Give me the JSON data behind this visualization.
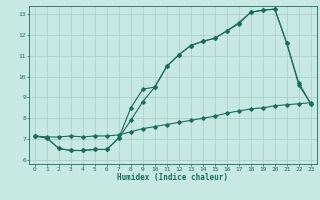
{
  "title": "",
  "xlabel": "Humidex (Indice chaleur)",
  "ylabel": "",
  "xlim": [
    -0.5,
    23.5
  ],
  "ylim": [
    5.8,
    13.4
  ],
  "yticks": [
    6,
    7,
    8,
    9,
    10,
    11,
    12,
    13
  ],
  "xticks": [
    0,
    1,
    2,
    3,
    4,
    5,
    6,
    7,
    8,
    9,
    10,
    11,
    12,
    13,
    14,
    15,
    16,
    17,
    18,
    19,
    20,
    21,
    22,
    23
  ],
  "bg_color": "#c8e8e4",
  "grid_color": "#a8ccc8",
  "line_color": "#1a6b60",
  "line1_x": [
    0,
    1,
    2,
    3,
    4,
    5,
    6,
    7,
    8,
    9,
    10,
    11,
    12,
    13,
    14,
    15,
    16,
    17,
    18,
    19,
    20,
    21,
    22,
    23
  ],
  "line1_y": [
    7.15,
    7.05,
    6.55,
    6.45,
    6.45,
    6.5,
    6.5,
    7.05,
    7.9,
    8.8,
    9.5,
    10.5,
    11.05,
    11.5,
    11.7,
    11.85,
    12.2,
    12.55,
    13.1,
    13.2,
    13.25,
    11.6,
    9.6,
    8.7
  ],
  "line2_x": [
    0,
    1,
    2,
    3,
    4,
    5,
    6,
    7,
    8,
    9,
    10,
    11,
    12,
    13,
    14,
    15,
    16,
    17,
    18,
    19,
    20,
    21,
    22,
    23
  ],
  "line2_y": [
    7.15,
    7.05,
    6.55,
    6.45,
    6.45,
    6.5,
    6.5,
    7.05,
    8.5,
    9.4,
    9.5,
    10.5,
    11.05,
    11.5,
    11.7,
    11.85,
    12.2,
    12.6,
    13.1,
    13.2,
    13.25,
    11.6,
    9.7,
    8.7
  ],
  "line3_x": [
    0,
    1,
    2,
    3,
    4,
    5,
    6,
    7,
    8,
    9,
    10,
    11,
    12,
    13,
    14,
    15,
    16,
    17,
    18,
    19,
    20,
    21,
    22,
    23
  ],
  "line3_y": [
    7.15,
    7.1,
    7.1,
    7.15,
    7.1,
    7.15,
    7.15,
    7.2,
    7.35,
    7.5,
    7.6,
    7.7,
    7.8,
    7.9,
    8.0,
    8.1,
    8.25,
    8.35,
    8.45,
    8.5,
    8.6,
    8.65,
    8.7,
    8.75
  ]
}
